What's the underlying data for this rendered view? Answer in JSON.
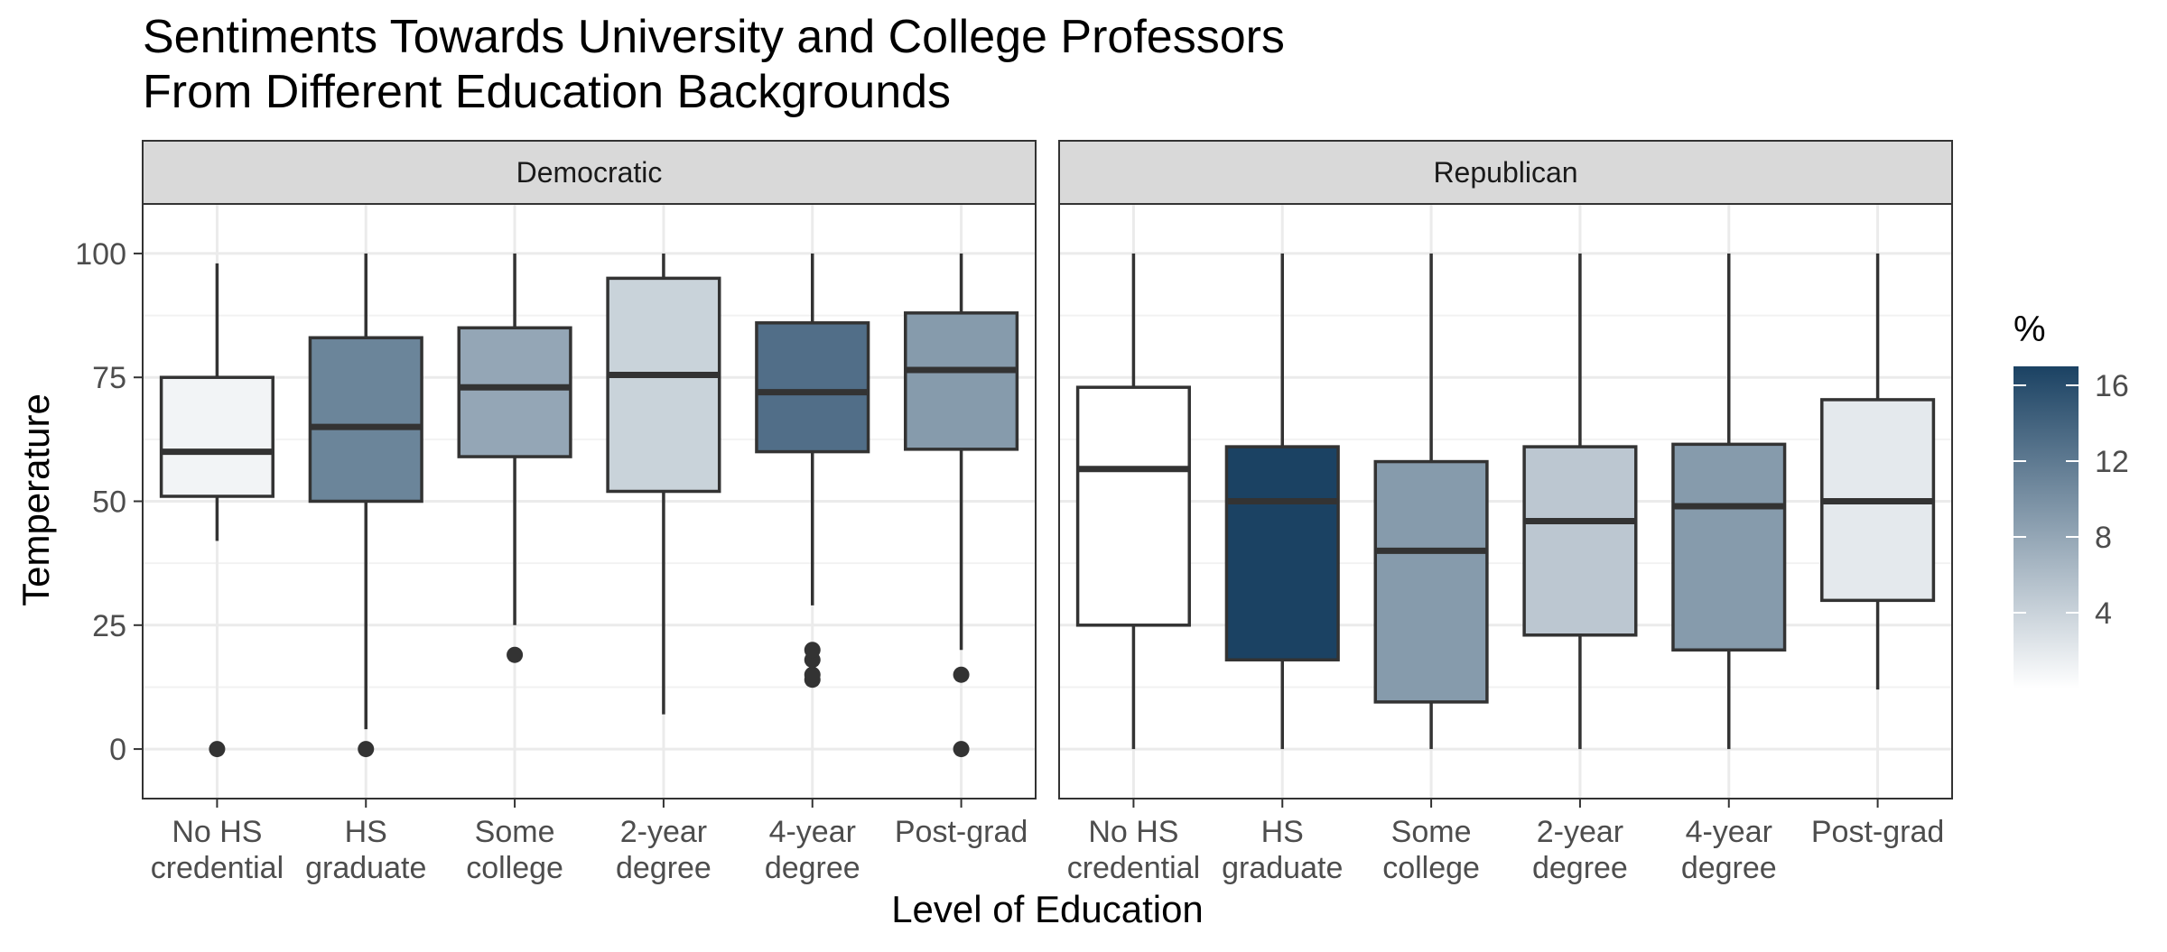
{
  "chart_data": {
    "type": "boxplot",
    "title_lines": [
      "Sentiments Towards University and College Professors",
      "From Different Education Backgrounds"
    ],
    "xlabel": "Level of Education",
    "ylabel": "Temperature",
    "ylim": [
      -10,
      110
    ],
    "yticks": [
      0,
      25,
      50,
      75,
      100
    ],
    "categories": [
      [
        "No HS",
        "credential"
      ],
      [
        "HS",
        "graduate"
      ],
      [
        "Some",
        "college"
      ],
      [
        "2-year",
        "degree"
      ],
      [
        "4-year",
        "degree"
      ],
      [
        "Post-grad"
      ]
    ],
    "grid": true,
    "legend": {
      "title": "%",
      "position": "right",
      "range": [
        0,
        17
      ],
      "ticks": [
        4,
        8,
        12,
        16
      ],
      "color_low": "#ffffff",
      "color_high": "#1b4263"
    },
    "facets": [
      {
        "name": "Democratic",
        "boxes": [
          {
            "category": "No HS credential",
            "min": 42,
            "q1": 51,
            "median": 60,
            "q3": 75,
            "max": 98,
            "outliers": [
              0
            ],
            "pct": 1
          },
          {
            "category": "HS graduate",
            "min": 4,
            "q1": 50,
            "median": 65,
            "q3": 83,
            "max": 100,
            "outliers": [
              0
            ],
            "pct": 11
          },
          {
            "category": "Some college",
            "min": 25,
            "q1": 59,
            "median": 73,
            "q3": 85,
            "max": 100,
            "outliers": [
              19
            ],
            "pct": 8
          },
          {
            "category": "2-year degree",
            "min": 7,
            "q1": 52,
            "median": 75.5,
            "q3": 95,
            "max": 100,
            "outliers": [],
            "pct": 4
          },
          {
            "category": "4-year degree",
            "min": 29,
            "q1": 60,
            "median": 72,
            "q3": 86,
            "max": 100,
            "outliers": [
              14,
              15,
              18,
              20
            ],
            "pct": 13
          },
          {
            "category": "Post-grad",
            "min": 20,
            "q1": 60.5,
            "median": 76.5,
            "q3": 88,
            "max": 100,
            "outliers": [
              15,
              0
            ],
            "pct": 9
          }
        ]
      },
      {
        "name": "Republican",
        "boxes": [
          {
            "category": "No HS credential",
            "min": 0,
            "q1": 25,
            "median": 56.5,
            "q3": 73,
            "max": 100,
            "outliers": [],
            "pct": 0
          },
          {
            "category": "HS graduate",
            "min": 0,
            "q1": 18,
            "median": 50,
            "q3": 61,
            "max": 100,
            "outliers": [],
            "pct": 17
          },
          {
            "category": "Some college",
            "min": 0,
            "q1": 9.5,
            "median": 40,
            "q3": 58,
            "max": 100,
            "outliers": [],
            "pct": 9
          },
          {
            "category": "2-year degree",
            "min": 0,
            "q1": 23,
            "median": 46,
            "q3": 61,
            "max": 100,
            "outliers": [],
            "pct": 5
          },
          {
            "category": "4-year degree",
            "min": 0,
            "q1": 20,
            "median": 49,
            "q3": 61.5,
            "max": 100,
            "outliers": [],
            "pct": 9
          },
          {
            "category": "Post-grad",
            "min": 12,
            "q1": 30,
            "median": 50,
            "q3": 70.5,
            "max": 100,
            "outliers": [],
            "pct": 2
          }
        ]
      }
    ]
  }
}
